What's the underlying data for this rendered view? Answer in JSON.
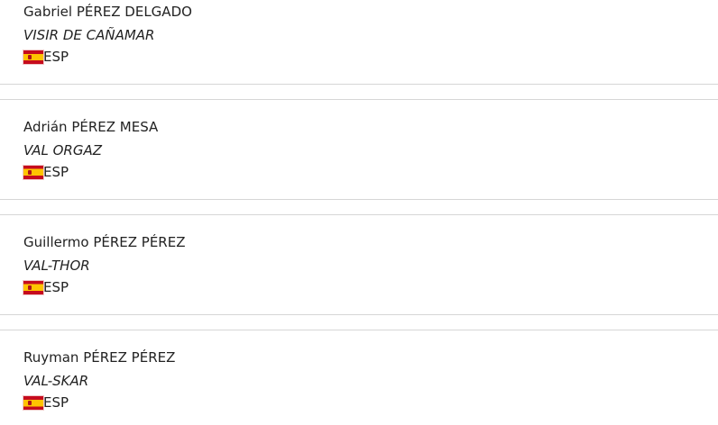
{
  "riders": [
    {
      "name": "Gabriel PÉREZ DELGADO",
      "horse": "VISIR DE CAÑAMAR",
      "nation": "ESP",
      "flag_icon": "spain-flag"
    },
    {
      "name": "Adrián PÉREZ MESA",
      "horse": "VAL ORGAZ",
      "nation": "ESP",
      "flag_icon": "spain-flag"
    },
    {
      "name": "Guillermo PÉREZ PÉREZ",
      "horse": "VAL-THOR",
      "nation": "ESP",
      "flag_icon": "spain-flag"
    },
    {
      "name": "Ruyman PÉREZ PÉREZ",
      "horse": "VAL-SKAR",
      "nation": "ESP",
      "flag_icon": "spain-flag"
    }
  ]
}
